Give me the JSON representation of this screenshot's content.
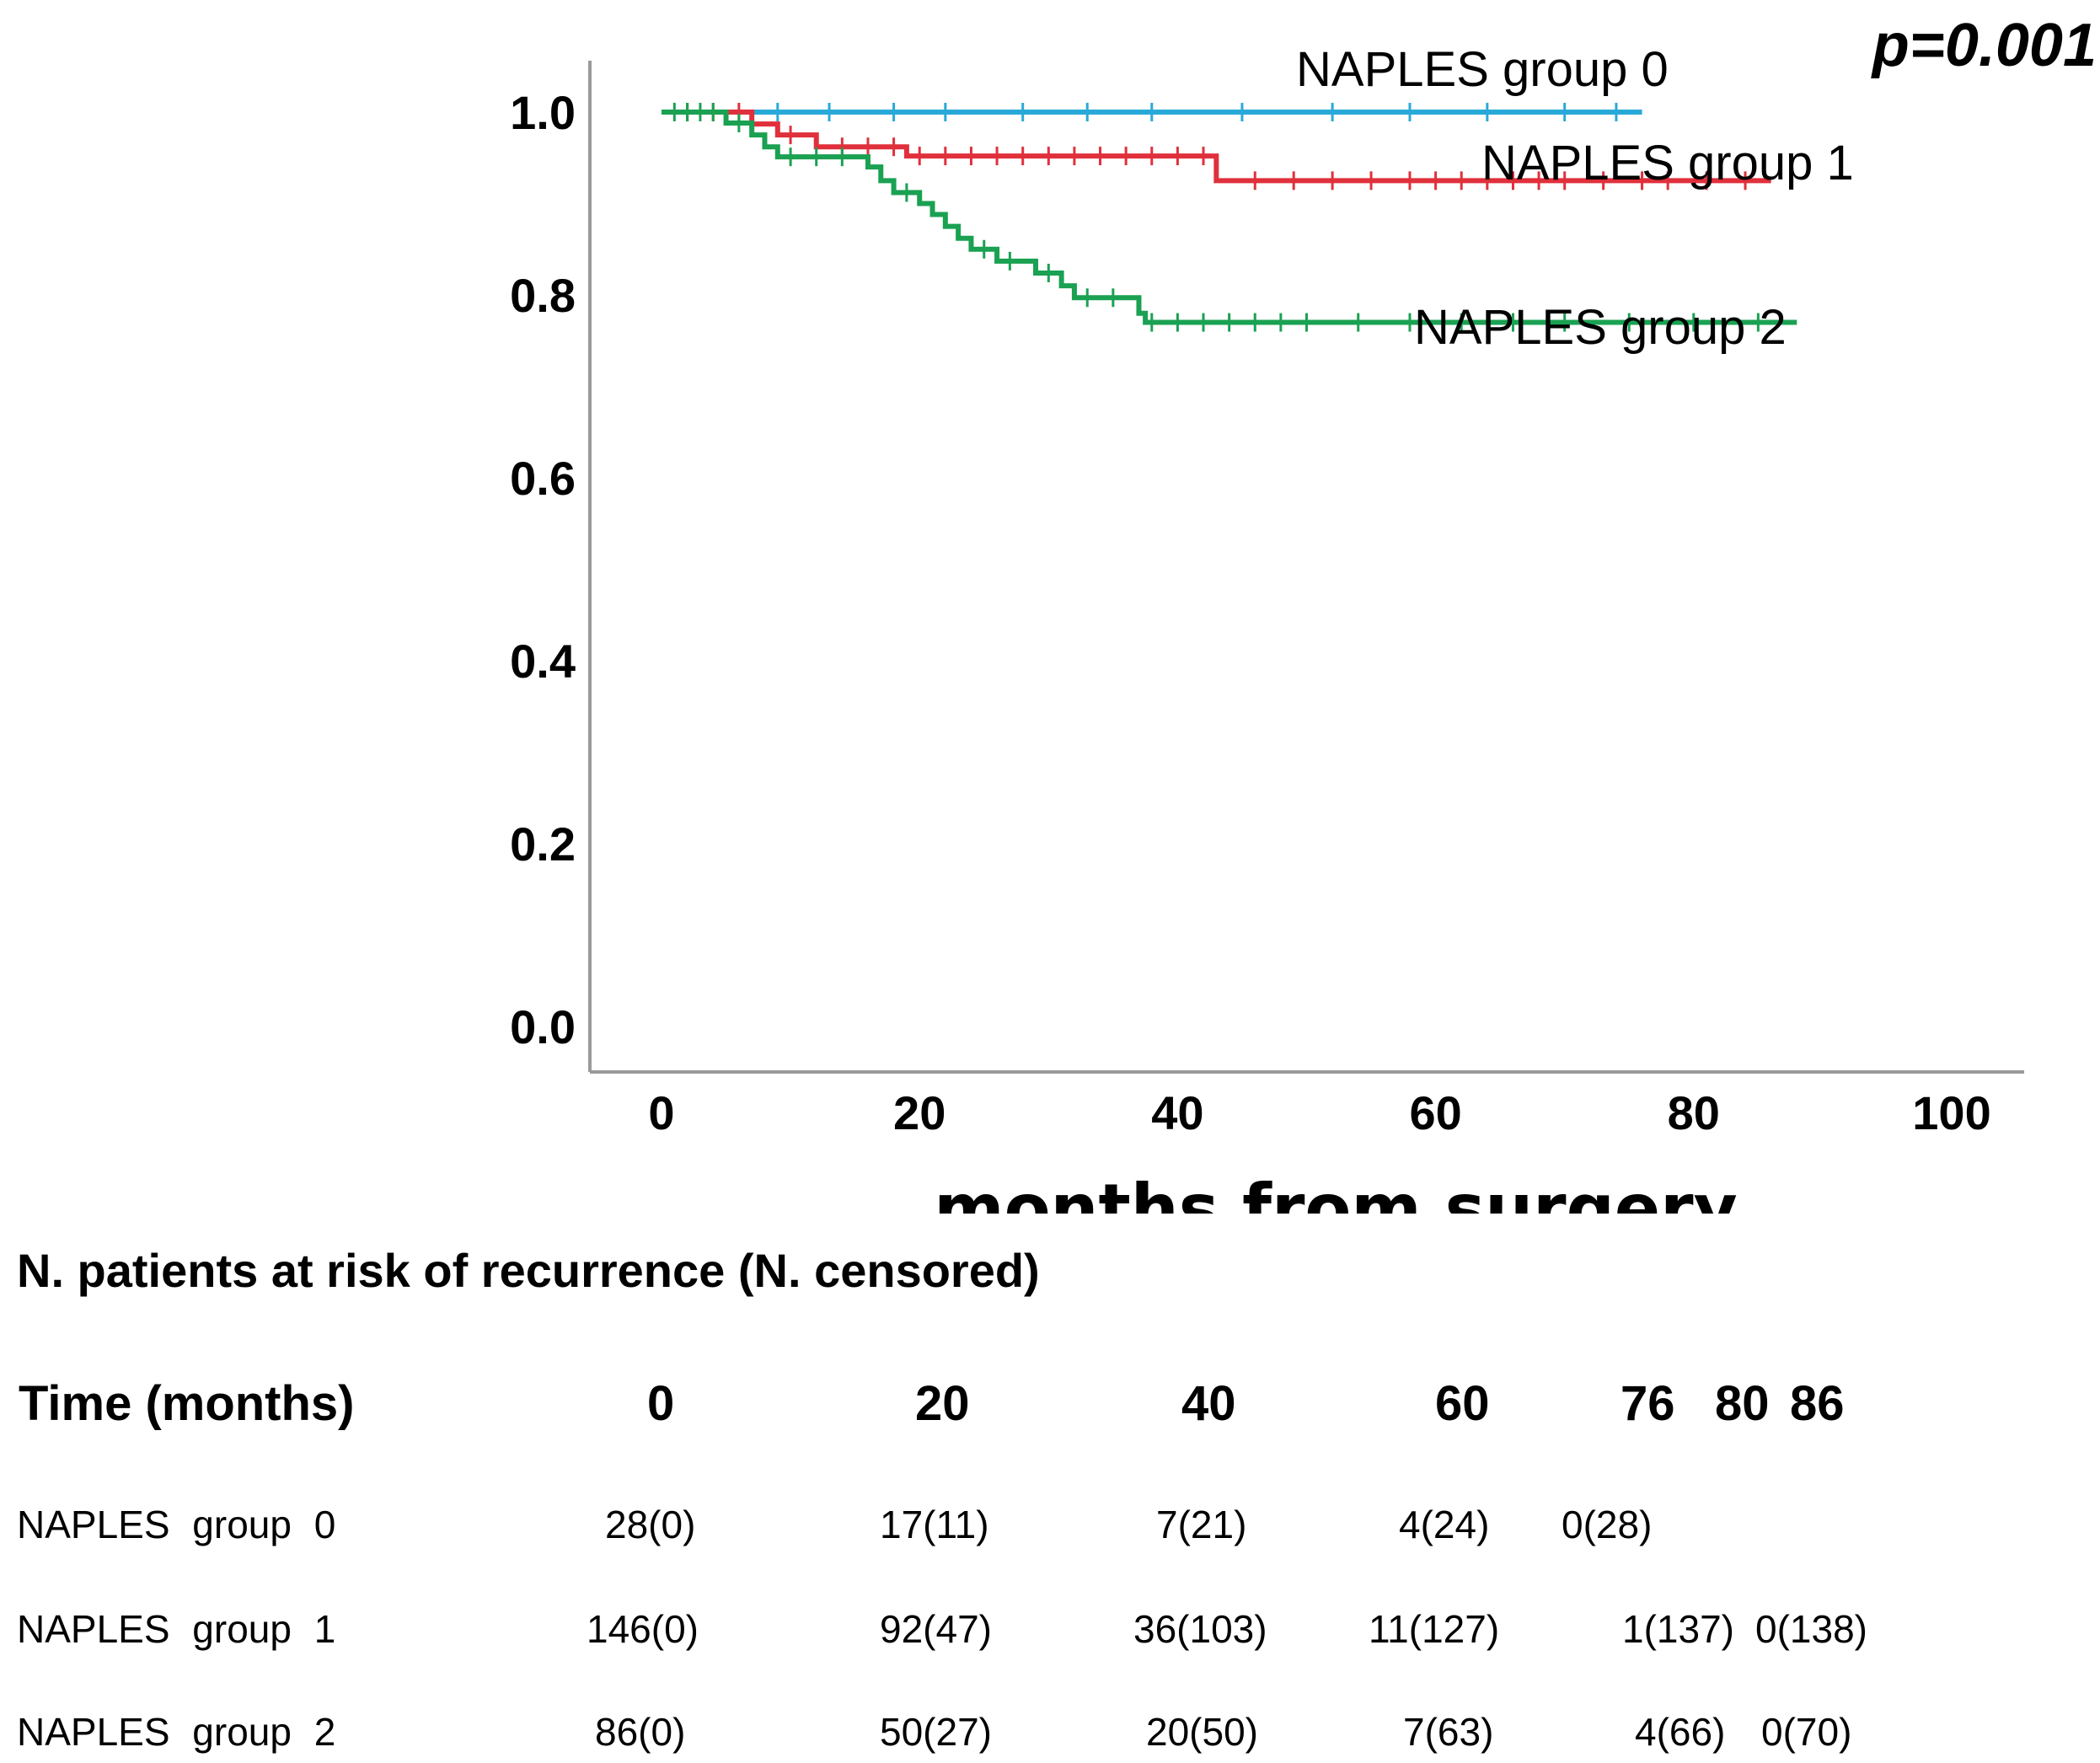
{
  "chart_data": {
    "type": "line",
    "title": "",
    "xlabel": "months from surgery",
    "ylabel": "",
    "xlim": [
      0,
      100
    ],
    "ylim": [
      0.0,
      1.0
    ],
    "x_ticks": [
      "0",
      "20",
      "40",
      "60",
      "80",
      "100"
    ],
    "y_ticks": [
      "0.0",
      "0.2",
      "0.4",
      "0.6",
      "0.8",
      "1.0"
    ],
    "annotation": "p=0.001",
    "series": [
      {
        "name": "NAPLES group 0",
        "color": "#29a9d8",
        "steps": [
          [
            0,
            1.0
          ],
          [
            76,
            1.0
          ]
        ],
        "censor_x": [
          9,
          13,
          18,
          22,
          28,
          33,
          38,
          45,
          52,
          58,
          64,
          70,
          74
        ]
      },
      {
        "name": "NAPLES group 1",
        "color": "#e0303c",
        "steps": [
          [
            0,
            1.0
          ],
          [
            7,
            0.987
          ],
          [
            9,
            0.975
          ],
          [
            12,
            0.962
          ],
          [
            19,
            0.952
          ],
          [
            43,
            0.925
          ],
          [
            86,
            0.925
          ]
        ],
        "censor_x": [
          2,
          4,
          6,
          10,
          14,
          16,
          18,
          20,
          22,
          24,
          26,
          28,
          30,
          32,
          34,
          36,
          38,
          40,
          42,
          46,
          49,
          52,
          55,
          58,
          60,
          62,
          64,
          66,
          68,
          70,
          73,
          76,
          78,
          81,
          84
        ]
      },
      {
        "name": "NAPLES group 2",
        "color": "#1aa152",
        "steps": [
          [
            0,
            1.0
          ],
          [
            5,
            0.988
          ],
          [
            7,
            0.975
          ],
          [
            8,
            0.962
          ],
          [
            9,
            0.951
          ],
          [
            16,
            0.94
          ],
          [
            17,
            0.925
          ],
          [
            18,
            0.912
          ],
          [
            20,
            0.9
          ],
          [
            21,
            0.888
          ],
          [
            22,
            0.875
          ],
          [
            23,
            0.862
          ],
          [
            24,
            0.85
          ],
          [
            26,
            0.837
          ],
          [
            29,
            0.824
          ],
          [
            31,
            0.81
          ],
          [
            32,
            0.797
          ],
          [
            37,
            0.78
          ],
          [
            37.5,
            0.77
          ],
          [
            88,
            0.77
          ]
        ],
        "censor_x": [
          1,
          2,
          3,
          4,
          6,
          10,
          12,
          14,
          19,
          25,
          27,
          30,
          33,
          35,
          38,
          40,
          42,
          44,
          46,
          48,
          50,
          54,
          58,
          62,
          66,
          70,
          75,
          80,
          85
        ]
      }
    ]
  },
  "risk_table": {
    "title": "N. patients at risk of recurrence (N. censored)",
    "time_label": "Time (months)",
    "time_points": [
      "0",
      "20",
      "40",
      "60",
      "76",
      "80",
      "86"
    ],
    "rows": [
      {
        "label": "NAPLES  group  0",
        "cells": [
          "28(0)",
          "17(11)",
          "7(21)",
          "4(24)",
          "0(28)"
        ]
      },
      {
        "label": "NAPLES  group  1",
        "cells": [
          "146(0)",
          "92(47)",
          "36(103)",
          "11(127)",
          "1(137)",
          "0(138)"
        ]
      },
      {
        "label": "NAPLES  group  2",
        "cells": [
          "86(0)",
          "50(27)",
          "20(50)",
          "7(63)",
          "4(66)",
          "0(70)"
        ]
      }
    ]
  }
}
